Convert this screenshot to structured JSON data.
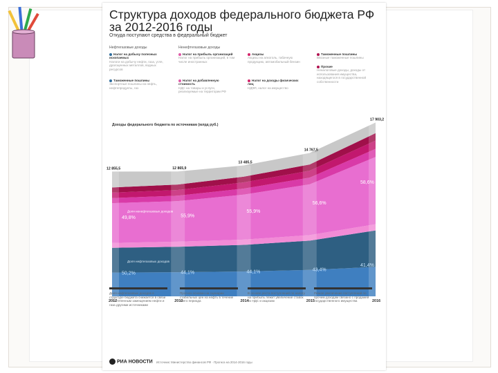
{
  "title": "Структура доходов федерального бюджета РФ за 2012-2016 годы",
  "subtitle": "Откуда поступают средства в федеральный бюджет",
  "legend": {
    "oil_gas_header": "Нефтегазовые доходы",
    "non_oil_gas_header": "Ненефтегазовые доходы",
    "items": [
      {
        "key": "ndpi",
        "title": "Налог на добычу полезных ископаемых",
        "note": "Налоги на добычу нефти, газа, угля, драгоценных металлов, водных ресурсов",
        "color": "#2f6e9e"
      },
      {
        "key": "export",
        "title": "Таможенные пошлины",
        "note": "Экспортные пошлины на нефть, нефтепродукты, газ",
        "color": "#2f6e9e"
      },
      {
        "key": "profit",
        "title": "Налог на прибыль организаций",
        "note": "Налог на прибыль организаций, в том числе иностранных",
        "color": "#e05aa8"
      },
      {
        "key": "nds",
        "title": "Налог на добавленную стоимость",
        "note": "НДС на товары и услуги, реализуемые на территории РФ",
        "color": "#e05aa8"
      },
      {
        "key": "excise",
        "title": "Акцизы",
        "note": "Акцизы на алкоголь, табачную продукцию, автомобильный бензин",
        "color": "#d4246a"
      },
      {
        "key": "import",
        "title": "Налог на доходы физических лиц",
        "note": "НДФЛ, налог на имущество",
        "color": "#d4246a"
      },
      {
        "key": "customs",
        "title": "Таможенные пошлины",
        "note": "Ввозные таможенные пошлины",
        "color": "#b0124f"
      },
      {
        "key": "other",
        "title": "Прочие",
        "note": "Неналоговые доходы, доходы от использования имущества, находящегося в государственной собственности",
        "color": "#b0124f"
      }
    ]
  },
  "notes": [
    "Доля нефтегазовых доходов в структуре бюджета снижается в связи с постепенным замещением нефти и газа другими источниками",
    "Прогноз основан на сценарии стабильных цен на нефть в течение всего периода",
    "В основе роста поступлений по налогу на прибыль лежит увеличение ставок по НДС и акцизам",
    "Резкое увеличение поступлений по прочим доходам связано с продажей государственного имущества"
  ],
  "footer": "Источник: Министерство финансов РФ · Прогноз на 2014-2016 годы",
  "logo": "РИА НОВОСТИ",
  "chart_data": {
    "type": "area",
    "title": "Доходы федерального бюджета по источникам (млрд руб.)",
    "x": [
      "2012",
      "2013",
      "2014",
      "2015",
      "2016"
    ],
    "totals": [
      12855.5,
      12865.9,
      13485.5,
      14767.5,
      17903.2
    ],
    "total_labels": [
      "12 855,5",
      "12 865,9",
      "13 485,5",
      "14 767,5",
      "17 903,2"
    ],
    "oil_gas_share_labels": [
      "50,2%",
      "44,1%",
      "44,1%",
      "43,4%",
      "41,4%"
    ],
    "non_oil_gas_share_labels": [
      "49,8%",
      "55,9%",
      "55,9%",
      "56,6%",
      "58,6%"
    ],
    "oil_gas_label": "Доля нефтегазовых доходов",
    "non_oil_gas_label": "Доля ненефтегазовых доходов",
    "series": [
      {
        "name": "НДПИ",
        "color": "#3f7fc0",
        "values": [
          2450,
          2480,
          2560,
          2720,
          3030
        ]
      },
      {
        "name": "Экспортные пошлины",
        "color": "#2e5f82",
        "values": [
          2550,
          2630,
          2740,
          3020,
          3760
        ]
      },
      {
        "name": "Налог на прибыль",
        "color": "#f28bd6",
        "values": [
          500,
          520,
          540,
          570,
          640
        ]
      },
      {
        "name": "НДС",
        "color": "#e86ed0",
        "values": [
          4100,
          4180,
          4640,
          5230,
          6930
        ]
      },
      {
        "name": "Акцизы",
        "color": "#d93aa8",
        "values": [
          520,
          560,
          620,
          690,
          830
        ]
      },
      {
        "name": "НДФЛ",
        "color": "#c2186e",
        "values": [
          560,
          590,
          640,
          710,
          860
        ]
      },
      {
        "name": "Таможенные пошлины",
        "color": "#a0104a",
        "values": [
          540,
          560,
          590,
          640,
          760
        ]
      },
      {
        "name": "Прочие",
        "color": "#c8c8c8",
        "values": [
          1635,
          1346,
          1155,
          1188,
          1093
        ]
      }
    ],
    "ylim": [
      0,
      19000
    ]
  }
}
